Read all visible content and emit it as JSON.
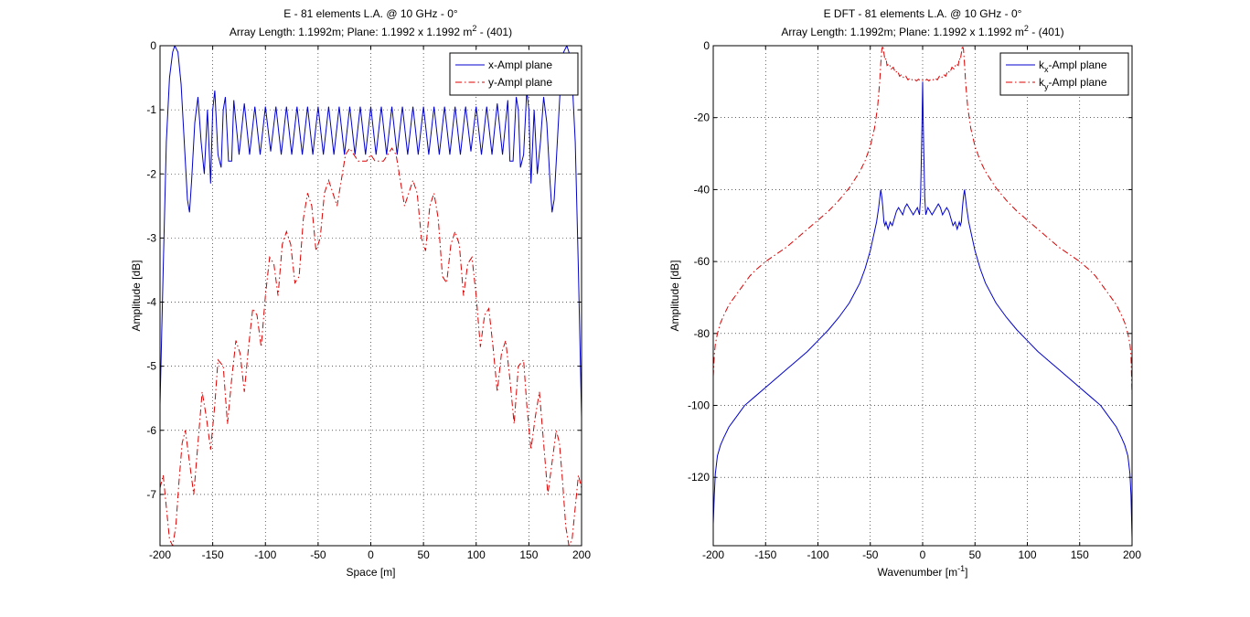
{
  "window": {
    "background": "#ffffff"
  },
  "chart_data": [
    {
      "type": "line",
      "title": "E - 81 elements L.A. @ 10 GHz - 0°",
      "subtitle_prefix": "Array Length: 1.1992m; Plane: 1.1992 x 1.1992 m",
      "subtitle_sup": "2",
      "subtitle_suffix": " - (401)",
      "xlabel": "Space [m]",
      "ylabel": "Amplitude [dB]",
      "xlim": [
        -200,
        200
      ],
      "ylim": [
        -7.8,
        0
      ],
      "xticks": [
        -200,
        -150,
        -100,
        -50,
        0,
        50,
        100,
        150,
        200
      ],
      "yticks": [
        0,
        -1,
        -2,
        -3,
        -4,
        -5,
        -6,
        -7
      ],
      "grid": true,
      "legend_position": "top-right",
      "series": [
        {
          "name": "x-Ampl plane",
          "legend_label": {
            "main": "x-Ampl plane",
            "sub": "",
            "suffix": ""
          },
          "color": "#0000cc",
          "style": "solid",
          "x": [
            -200,
            -197,
            -194,
            -191,
            -188,
            -186,
            -183,
            -180,
            -177,
            -174,
            -172,
            -170,
            -167,
            -164,
            -161,
            -158,
            -155,
            -152,
            -150,
            -148,
            -145,
            -142,
            -140,
            -138,
            -135,
            -132,
            -130,
            -125,
            -120,
            -115,
            -110,
            -105,
            -100,
            -95,
            -90,
            -85,
            -80,
            -75,
            -70,
            -65,
            -60,
            -55,
            -50,
            -45,
            -40,
            -35,
            -30,
            -25,
            -20,
            -15,
            -10,
            -5,
            0,
            5,
            10,
            15,
            20,
            25,
            30,
            35,
            40,
            45,
            50,
            55,
            60,
            65,
            70,
            75,
            80,
            85,
            90,
            95,
            100,
            105,
            110,
            115,
            120,
            125,
            130,
            132,
            135,
            138,
            140,
            142,
            145,
            148,
            150,
            152,
            155,
            158,
            161,
            164,
            167,
            170,
            172,
            174,
            177,
            180,
            183,
            186,
            188,
            191,
            194,
            197,
            200
          ],
          "y": [
            -5.6,
            -3.5,
            -1.5,
            -0.5,
            -0.1,
            0.0,
            -0.1,
            -0.6,
            -1.5,
            -2.4,
            -2.6,
            -2.1,
            -1.2,
            -0.8,
            -1.5,
            -2.0,
            -1.0,
            -2.15,
            -1.0,
            -0.7,
            -1.7,
            -1.9,
            -1.0,
            -0.8,
            -1.8,
            -1.8,
            -0.85,
            -1.7,
            -0.9,
            -1.7,
            -0.95,
            -1.7,
            -0.95,
            -1.65,
            -0.95,
            -1.7,
            -0.95,
            -1.7,
            -0.95,
            -1.7,
            -0.95,
            -1.7,
            -0.95,
            -1.7,
            -0.95,
            -1.7,
            -0.95,
            -1.7,
            -0.95,
            -1.7,
            -0.95,
            -1.7,
            -0.95,
            -1.7,
            -0.95,
            -1.7,
            -0.95,
            -1.7,
            -0.95,
            -1.7,
            -0.95,
            -1.7,
            -0.95,
            -1.7,
            -0.95,
            -1.7,
            -0.95,
            -1.7,
            -0.95,
            -1.7,
            -0.95,
            -1.65,
            -0.95,
            -1.7,
            -0.95,
            -1.7,
            -0.9,
            -1.7,
            -0.85,
            -1.8,
            -1.8,
            -0.8,
            -1.0,
            -1.9,
            -1.7,
            -0.7,
            -1.0,
            -2.15,
            -1.0,
            -2.0,
            -1.5,
            -0.8,
            -1.2,
            -2.1,
            -2.6,
            -2.4,
            -1.5,
            -0.6,
            -0.1,
            0.0,
            -0.1,
            -0.5,
            -1.5,
            -3.5,
            -5.8
          ]
        },
        {
          "name": "y-Ampl plane",
          "legend_label": {
            "main": "y-Ampl plane",
            "sub": "",
            "suffix": ""
          },
          "color": "#dd0000",
          "style": "dashdot",
          "x": [
            -200,
            -197,
            -194,
            -191,
            -188,
            -185,
            -182,
            -179,
            -176,
            -172,
            -168,
            -164,
            -160,
            -156,
            -152,
            -148,
            -145,
            -140,
            -136,
            -132,
            -128,
            -124,
            -120,
            -116,
            -112,
            -108,
            -104,
            -100,
            -96,
            -92,
            -88,
            -84,
            -80,
            -76,
            -72,
            -68,
            -64,
            -60,
            -56,
            -52,
            -48,
            -44,
            -40,
            -36,
            -32,
            -28,
            -24,
            -20,
            -16,
            -12,
            -8,
            -4,
            0,
            4,
            8,
            12,
            16,
            20,
            24,
            28,
            32,
            36,
            40,
            44,
            48,
            52,
            56,
            60,
            64,
            68,
            72,
            76,
            80,
            84,
            88,
            92,
            96,
            100,
            104,
            108,
            112,
            116,
            120,
            124,
            128,
            132,
            136,
            140,
            145,
            148,
            152,
            156,
            160,
            164,
            168,
            172,
            176,
            179,
            182,
            185,
            188,
            191,
            194,
            197,
            200
          ],
          "y": [
            -6.9,
            -6.7,
            -7.2,
            -7.7,
            -7.8,
            -7.5,
            -6.8,
            -6.2,
            -6.0,
            -6.5,
            -7.0,
            -6.2,
            -5.4,
            -5.8,
            -6.3,
            -5.6,
            -4.9,
            -5.0,
            -5.9,
            -5.2,
            -4.6,
            -4.8,
            -5.4,
            -4.7,
            -4.1,
            -4.2,
            -4.7,
            -3.9,
            -3.3,
            -3.4,
            -3.9,
            -3.1,
            -2.9,
            -3.1,
            -3.7,
            -3.6,
            -2.7,
            -2.3,
            -2.5,
            -3.2,
            -3.0,
            -2.3,
            -2.1,
            -2.3,
            -2.5,
            -2.1,
            -1.7,
            -1.6,
            -1.7,
            -1.8,
            -1.8,
            -1.8,
            -1.7,
            -1.8,
            -1.8,
            -1.8,
            -1.7,
            -1.6,
            -1.7,
            -2.1,
            -2.5,
            -2.3,
            -2.1,
            -2.3,
            -3.0,
            -3.2,
            -2.5,
            -2.3,
            -2.7,
            -3.6,
            -3.7,
            -3.1,
            -2.9,
            -3.1,
            -3.9,
            -3.4,
            -3.3,
            -3.9,
            -4.7,
            -4.2,
            -4.1,
            -4.7,
            -5.4,
            -4.8,
            -4.6,
            -5.2,
            -5.9,
            -5.0,
            -4.9,
            -5.6,
            -6.3,
            -5.8,
            -5.4,
            -6.2,
            -7.0,
            -6.5,
            -6.0,
            -6.2,
            -6.8,
            -7.5,
            -7.8,
            -7.7,
            -7.2,
            -6.7,
            -6.9
          ]
        }
      ]
    },
    {
      "type": "line",
      "title": "E DFT - 81 elements L.A. @ 10 GHz - 0°",
      "subtitle_prefix": "Array Length: 1.1992m; Plane: 1.1992 x 1.1992 m",
      "subtitle_sup": "2",
      "subtitle_suffix": " - (401)",
      "xlabel": "Wavenumber [m",
      "xlabel_sup": "-1",
      "xlabel_suffix": "]",
      "ylabel": "Amplitude [dB]",
      "xlim": [
        -200,
        200
      ],
      "ylim": [
        -139,
        0
      ],
      "xticks": [
        -200,
        -150,
        -100,
        -50,
        0,
        50,
        100,
        150,
        200
      ],
      "yticks": [
        0,
        -20,
        -40,
        -60,
        -80,
        -100,
        -120
      ],
      "grid": true,
      "legend_position": "top-right",
      "series": [
        {
          "name": "kx-Ampl plane",
          "legend_label": {
            "main": "k",
            "sub": "x",
            "suffix": "-Ampl plane"
          },
          "color": "#0000cc",
          "style": "solid",
          "x": [
            -200,
            -199,
            -198,
            -196,
            -193,
            -190,
            -185,
            -180,
            -175,
            -170,
            -160,
            -150,
            -140,
            -130,
            -120,
            -110,
            -100,
            -90,
            -80,
            -70,
            -60,
            -55,
            -50,
            -47,
            -44,
            -42,
            -40,
            -39,
            -38,
            -37,
            -36,
            -35,
            -33,
            -31,
            -29,
            -27,
            -25,
            -23,
            -21,
            -19,
            -17,
            -15,
            -13,
            -11,
            -9,
            -7,
            -5,
            -3,
            -2,
            -1.5,
            -1,
            -0.5,
            0,
            0.5,
            1,
            1.5,
            2,
            3,
            5,
            7,
            9,
            11,
            13,
            15,
            17,
            19,
            21,
            23,
            25,
            27,
            29,
            31,
            33,
            35,
            36,
            37,
            38,
            39,
            40,
            42,
            44,
            47,
            50,
            55,
            60,
            70,
            80,
            90,
            100,
            110,
            120,
            130,
            140,
            150,
            160,
            170,
            175,
            180,
            185,
            190,
            193,
            196,
            198,
            199,
            200
          ],
          "y": [
            -133,
            -125,
            -119,
            -114,
            -111,
            -109,
            -106,
            -104,
            -102,
            -100,
            -97.5,
            -95,
            -92.5,
            -90,
            -87.5,
            -85,
            -82,
            -79,
            -75.5,
            -71.5,
            -66,
            -62,
            -57,
            -53,
            -49,
            -45,
            -40,
            -42,
            -45,
            -49,
            -50,
            -49,
            -51,
            -49,
            -50,
            -48,
            -46,
            -45,
            -46,
            -47,
            -45,
            -44,
            -45,
            -46,
            -47,
            -46,
            -45,
            -47,
            -42,
            -35,
            -28,
            -20,
            -10,
            -20,
            -28,
            -35,
            -42,
            -47,
            -45,
            -46,
            -47,
            -46,
            -45,
            -44,
            -45,
            -47,
            -46,
            -45,
            -46,
            -48,
            -50,
            -49,
            -51,
            -49,
            -50,
            -49,
            -45,
            -42,
            -40,
            -45,
            -49,
            -53,
            -57,
            -62,
            -66,
            -71.5,
            -75.5,
            -79,
            -82,
            -85,
            -87.5,
            -90,
            -92.5,
            -95,
            -97.5,
            -100,
            -102,
            -104,
            -106,
            -109,
            -111,
            -114,
            -119,
            -125,
            -137
          ]
        },
        {
          "name": "ky-Ampl plane",
          "legend_label": {
            "main": "k",
            "sub": "y",
            "suffix": "-Ampl plane"
          },
          "color": "#dd0000",
          "style": "dashdot",
          "x": [
            -200,
            -199,
            -198,
            -196,
            -193,
            -190,
            -185,
            -180,
            -175,
            -170,
            -165,
            -160,
            -150,
            -140,
            -130,
            -120,
            -110,
            -100,
            -90,
            -80,
            -70,
            -60,
            -55,
            -50,
            -46,
            -43,
            -41,
            -40,
            -39,
            -38,
            -37,
            -36,
            -35,
            -34,
            -32,
            -30,
            -28,
            -26,
            -24,
            -22,
            -20,
            -18,
            -16,
            -14,
            -12,
            -10,
            -8,
            -6,
            -4,
            -2,
            0,
            2,
            4,
            6,
            8,
            10,
            12,
            14,
            16,
            18,
            20,
            22,
            24,
            26,
            28,
            30,
            32,
            34,
            35,
            36,
            37,
            38,
            39,
            40,
            41,
            43,
            46,
            50,
            55,
            60,
            70,
            80,
            90,
            100,
            110,
            120,
            130,
            140,
            150,
            160,
            165,
            170,
            175,
            180,
            185,
            190,
            193,
            196,
            198,
            199,
            200
          ],
          "y": [
            -92,
            -86,
            -83,
            -80,
            -77,
            -75,
            -72,
            -70,
            -68,
            -66,
            -64,
            -62.5,
            -60,
            -58,
            -56,
            -53.5,
            -51,
            -48.5,
            -46,
            -43,
            -39.5,
            -35,
            -32,
            -28,
            -23,
            -17,
            -10,
            -5,
            -1,
            0,
            -2,
            -4,
            -3.5,
            -5.5,
            -5,
            -6.5,
            -6,
            -7.5,
            -7,
            -8.5,
            -8,
            -9,
            -8.5,
            -9.5,
            -9,
            -9.5,
            -9.2,
            -9.8,
            -9.3,
            -9.8,
            -9.6,
            -9.8,
            -9.3,
            -9.8,
            -9.2,
            -9.5,
            -9,
            -9.5,
            -8.5,
            -9,
            -8,
            -8.5,
            -7,
            -7.5,
            -6,
            -6.5,
            -5,
            -5.5,
            -3.5,
            -4,
            -2,
            0,
            -1,
            -5,
            -10,
            -17,
            -23,
            -28,
            -32,
            -35,
            -39.5,
            -43,
            -46,
            -48.5,
            -51,
            -53.5,
            -56,
            -58,
            -60,
            -62.5,
            -64,
            -66,
            -68,
            -70,
            -72,
            -75,
            -77,
            -80,
            -83,
            -86,
            -97
          ]
        }
      ]
    }
  ]
}
